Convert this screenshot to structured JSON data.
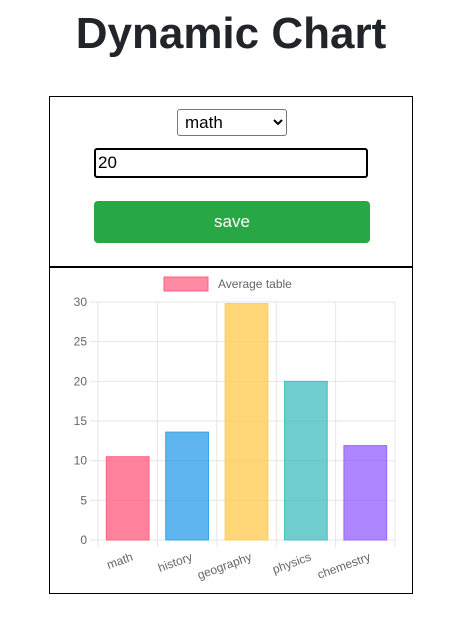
{
  "page": {
    "title": "Dynamic Chart"
  },
  "form": {
    "subject_options": [
      "math",
      "history",
      "geography",
      "physics",
      "chemestry"
    ],
    "selected_subject": "math",
    "value": "20",
    "save_label": "save"
  },
  "chart_data": {
    "type": "bar",
    "title": "",
    "xlabel": "",
    "ylabel": "",
    "categories": [
      "math",
      "history",
      "geography",
      "physics",
      "chemestry"
    ],
    "series": [
      {
        "name": "Average table",
        "values": [
          10.5,
          13.6,
          29.8,
          20,
          11.9
        ]
      }
    ],
    "ylim": [
      0,
      30
    ],
    "yticks": [
      0,
      5,
      10,
      15,
      20,
      25,
      30
    ],
    "grid": true,
    "legend_position": "top",
    "legend_color": "#ff6384",
    "bar_fills": [
      "#ff6384",
      "#36a2eb",
      "#ffcd56",
      "#4bc0c0",
      "#9966ff"
    ]
  }
}
